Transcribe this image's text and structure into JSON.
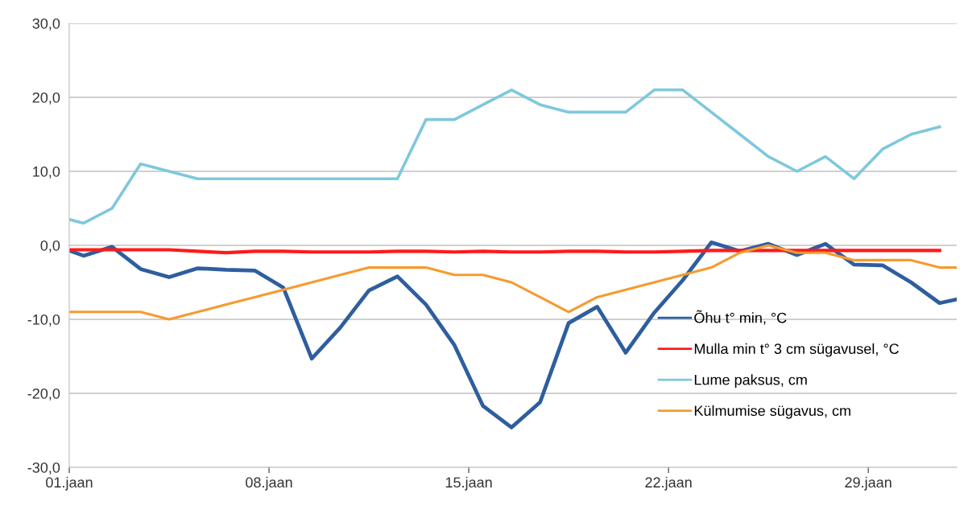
{
  "chart_data": {
    "type": "line",
    "xlim": [
      1,
      32.1
    ],
    "xticks": [
      {
        "value": 1,
        "label": "01.jaan"
      },
      {
        "value": 8,
        "label": "08.jaan"
      },
      {
        "value": 15,
        "label": "15.jaan"
      },
      {
        "value": 22,
        "label": "22.jaan"
      },
      {
        "value": 29,
        "label": "29.jaan"
      }
    ],
    "ylim": [
      -30,
      30
    ],
    "yticks": [
      {
        "value": -30,
        "label": "-30,0"
      },
      {
        "value": -20,
        "label": "-20,0"
      },
      {
        "value": -10,
        "label": "-10,0"
      },
      {
        "value": 0,
        "label": "0,0"
      },
      {
        "value": 10,
        "label": "10,0"
      },
      {
        "value": 20,
        "label": "20,0"
      },
      {
        "value": 30,
        "label": "30,0"
      }
    ],
    "grid": "y",
    "legend": "bottom right",
    "marker": "none",
    "line_style": "solid",
    "series": [
      {
        "name": "Õhu t° min, °C",
        "color": "#2e5e9e",
        "x": [
          1,
          1.5,
          2.5,
          3.5,
          4.5,
          5.5,
          6.5,
          7.5,
          8.5,
          9.5,
          10.5,
          11.5,
          12.5,
          13.5,
          14.5,
          15.5,
          16.5,
          17.5,
          18.5,
          19.5,
          20.5,
          21.5,
          22.5,
          23.5,
          24.5,
          25.5,
          26.5,
          27.5,
          28.5,
          29.5,
          30.5,
          31.5,
          32.1
        ],
        "values": [
          -0.7,
          -1.4,
          -0.2,
          -3.2,
          -4.3,
          -3.1,
          -3.3,
          -3.4,
          -5.7,
          -15.3,
          -11.1,
          -6.1,
          -4.2,
          -8.0,
          -13.5,
          -21.7,
          -24.6,
          -21.2,
          -10.5,
          -8.3,
          -14.5,
          -9.1,
          -4.7,
          0.4,
          -0.8,
          0.2,
          -1.3,
          0.2,
          -2.6,
          -2.7,
          -5.0,
          -7.8,
          -7.3
        ]
      },
      {
        "name": "Mulla min t° 3 cm sügavusel, °C",
        "color": "#ff1a1a",
        "x": [
          1,
          1.5,
          2.5,
          3.5,
          4.5,
          5.5,
          6.5,
          7.5,
          8.5,
          9.5,
          10.5,
          11.5,
          12.5,
          13.5,
          14.5,
          15.5,
          16.5,
          17.5,
          18.5,
          19.5,
          20.5,
          21.5,
          22.5,
          23.5,
          24.5,
          25.5,
          26.5,
          27.5,
          28.5,
          29.5,
          30.5,
          31.5
        ],
        "values": [
          -0.6,
          -0.6,
          -0.6,
          -0.6,
          -0.6,
          -0.8,
          -1.0,
          -0.8,
          -0.8,
          -0.9,
          -0.9,
          -0.9,
          -0.8,
          -0.8,
          -0.9,
          -0.8,
          -0.9,
          -0.9,
          -0.8,
          -0.8,
          -0.9,
          -0.9,
          -0.8,
          -0.7,
          -0.7,
          -0.7,
          -0.7,
          -0.7,
          -0.7,
          -0.7,
          -0.7,
          -0.7
        ]
      },
      {
        "name": "Lume paksus, cm",
        "color": "#7ec8dc",
        "x": [
          1,
          1.5,
          2.5,
          3.5,
          4.5,
          5.5,
          6.5,
          7.5,
          8.5,
          9.5,
          10.5,
          11.5,
          12.5,
          13.5,
          14.5,
          15.5,
          16.5,
          17.5,
          18.5,
          19.5,
          20.5,
          21.5,
          22.5,
          23.5,
          24.5,
          25.5,
          26.5,
          27.5,
          28.5,
          29.5,
          30.5,
          31.5
        ],
        "values": [
          3.5,
          3,
          5,
          11,
          10,
          9,
          9,
          9,
          9,
          9,
          9,
          9,
          9,
          17,
          17,
          19,
          21,
          19,
          18,
          18,
          18,
          21,
          21,
          18,
          15,
          12,
          10,
          12,
          9,
          13,
          15,
          16
        ]
      },
      {
        "name": "Külmumise sügavus, cm",
        "color": "#f79a2e",
        "x": [
          1,
          1.5,
          2.5,
          3.5,
          4.5,
          5.5,
          6.5,
          7.5,
          8.5,
          9.5,
          10.5,
          11.5,
          12.5,
          13.5,
          14.5,
          15.5,
          16.5,
          17.5,
          18.5,
          19.5,
          20.5,
          21.5,
          22.5,
          23.5,
          24.5,
          25.5,
          26.5,
          27.5,
          28.5,
          29.5,
          30.5,
          31.5,
          32.1
        ],
        "values": [
          -9,
          -9,
          -9,
          -9,
          -10,
          -9,
          -8,
          -7,
          -6,
          -5,
          -4,
          -3,
          -3,
          -3,
          -4,
          -4,
          -5,
          -7,
          -9,
          -7,
          -6,
          -5,
          -4,
          -3,
          -1,
          0,
          -1,
          -1,
          -2,
          -2,
          -2,
          -3,
          -3
        ]
      }
    ]
  }
}
